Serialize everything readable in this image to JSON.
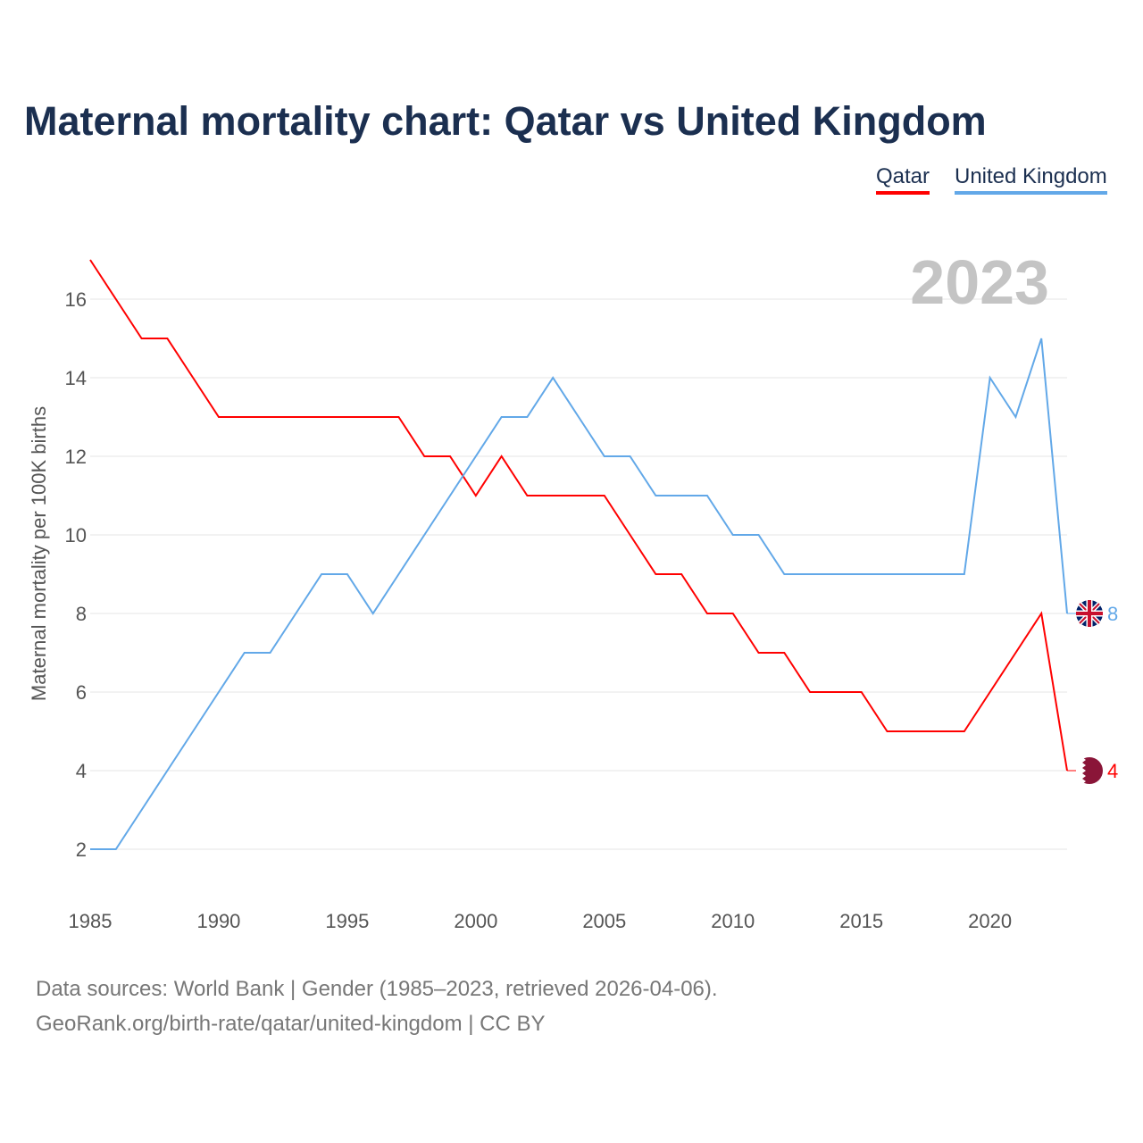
{
  "title": "Maternal mortality chart: Qatar vs United Kingdom",
  "source_line1": "Data sources: World Bank | Gender (1985–2023, retrieved 2026-04-06).",
  "source_line2": "GeoRank.org/birth-rate/qatar/united-kingdom | CC BY",
  "chart_data": {
    "type": "line",
    "title": "Maternal mortality chart: Qatar vs United Kingdom",
    "ylabel": "Maternal mortality per 100K births",
    "xlabel": "",
    "year_label": "2023",
    "xlim": [
      1985,
      2023
    ],
    "ylim": [
      1,
      17
    ],
    "xticks": [
      1985,
      1990,
      1995,
      2000,
      2005,
      2010,
      2015,
      2020
    ],
    "yticks": [
      2,
      4,
      6,
      8,
      10,
      12,
      14,
      16
    ],
    "legend_position": "top-right",
    "x": [
      1985,
      1986,
      1987,
      1988,
      1989,
      1990,
      1991,
      1992,
      1993,
      1994,
      1995,
      1996,
      1997,
      1998,
      1999,
      2000,
      2001,
      2002,
      2003,
      2004,
      2005,
      2006,
      2007,
      2008,
      2009,
      2010,
      2011,
      2012,
      2013,
      2014,
      2015,
      2016,
      2017,
      2018,
      2019,
      2020,
      2021,
      2022,
      2023
    ],
    "series": [
      {
        "name": "Qatar",
        "color": "#ff0000",
        "end_label": "4",
        "values": [
          17,
          16,
          15,
          15,
          14,
          13,
          13,
          13,
          13,
          13,
          13,
          13,
          13,
          12,
          12,
          11,
          12,
          11,
          11,
          11,
          11,
          10,
          9,
          9,
          8,
          8,
          7,
          7,
          6,
          6,
          6,
          5,
          5,
          5,
          5,
          6,
          7,
          8,
          4
        ]
      },
      {
        "name": "United Kingdom",
        "color": "#62a8e8",
        "end_label": "8",
        "values": [
          2,
          2,
          3,
          4,
          5,
          6,
          7,
          7,
          8,
          9,
          9,
          8,
          9,
          10,
          11,
          12,
          13,
          13,
          14,
          13,
          12,
          12,
          11,
          11,
          11,
          10,
          10,
          9,
          9,
          9,
          9,
          9,
          9,
          9,
          9,
          14,
          13,
          15,
          8
        ]
      }
    ]
  }
}
